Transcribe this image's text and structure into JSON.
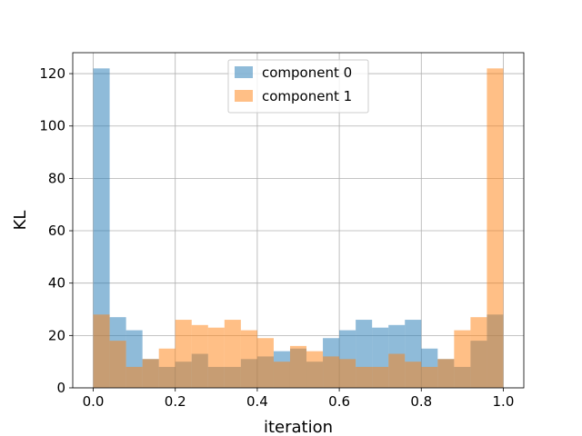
{
  "chart_data": {
    "type": "bar",
    "subtype": "histogram",
    "title": "",
    "xlabel": "iteration",
    "ylabel": "KL",
    "xlim": [
      -0.05,
      1.05
    ],
    "ylim": [
      0,
      128
    ],
    "grid": true,
    "legend_position": "top-center",
    "bin_width": 0.04,
    "bin_starts": [
      0.0,
      0.04,
      0.08,
      0.12,
      0.16,
      0.2,
      0.24,
      0.28,
      0.32,
      0.36,
      0.4,
      0.44,
      0.48,
      0.52,
      0.56,
      0.6,
      0.64,
      0.68,
      0.72,
      0.76,
      0.8,
      0.84,
      0.88,
      0.92,
      0.96
    ],
    "x_ticks": [
      0.0,
      0.2,
      0.4,
      0.6,
      0.8,
      1.0
    ],
    "x_tick_labels": [
      "0.0",
      "0.2",
      "0.4",
      "0.6",
      "0.8",
      "1.0"
    ],
    "y_ticks": [
      0,
      20,
      40,
      60,
      80,
      100,
      120
    ],
    "y_tick_labels": [
      "0",
      "20",
      "40",
      "60",
      "80",
      "100",
      "120"
    ],
    "series": [
      {
        "name": "component 0",
        "color": "#1f77b4",
        "alpha": 0.5,
        "values": [
          122,
          27,
          22,
          11,
          8,
          10,
          13,
          8,
          8,
          11,
          12,
          14,
          15,
          10,
          19,
          22,
          26,
          23,
          24,
          26,
          15,
          11,
          8,
          18,
          28
        ]
      },
      {
        "name": "component 1",
        "color": "#ff7f0e",
        "alpha": 0.5,
        "values": [
          28,
          18,
          8,
          11,
          15,
          26,
          24,
          23,
          26,
          22,
          19,
          10,
          16,
          14,
          12,
          11,
          8,
          8,
          13,
          10,
          8,
          11,
          22,
          27,
          122
        ]
      }
    ]
  }
}
